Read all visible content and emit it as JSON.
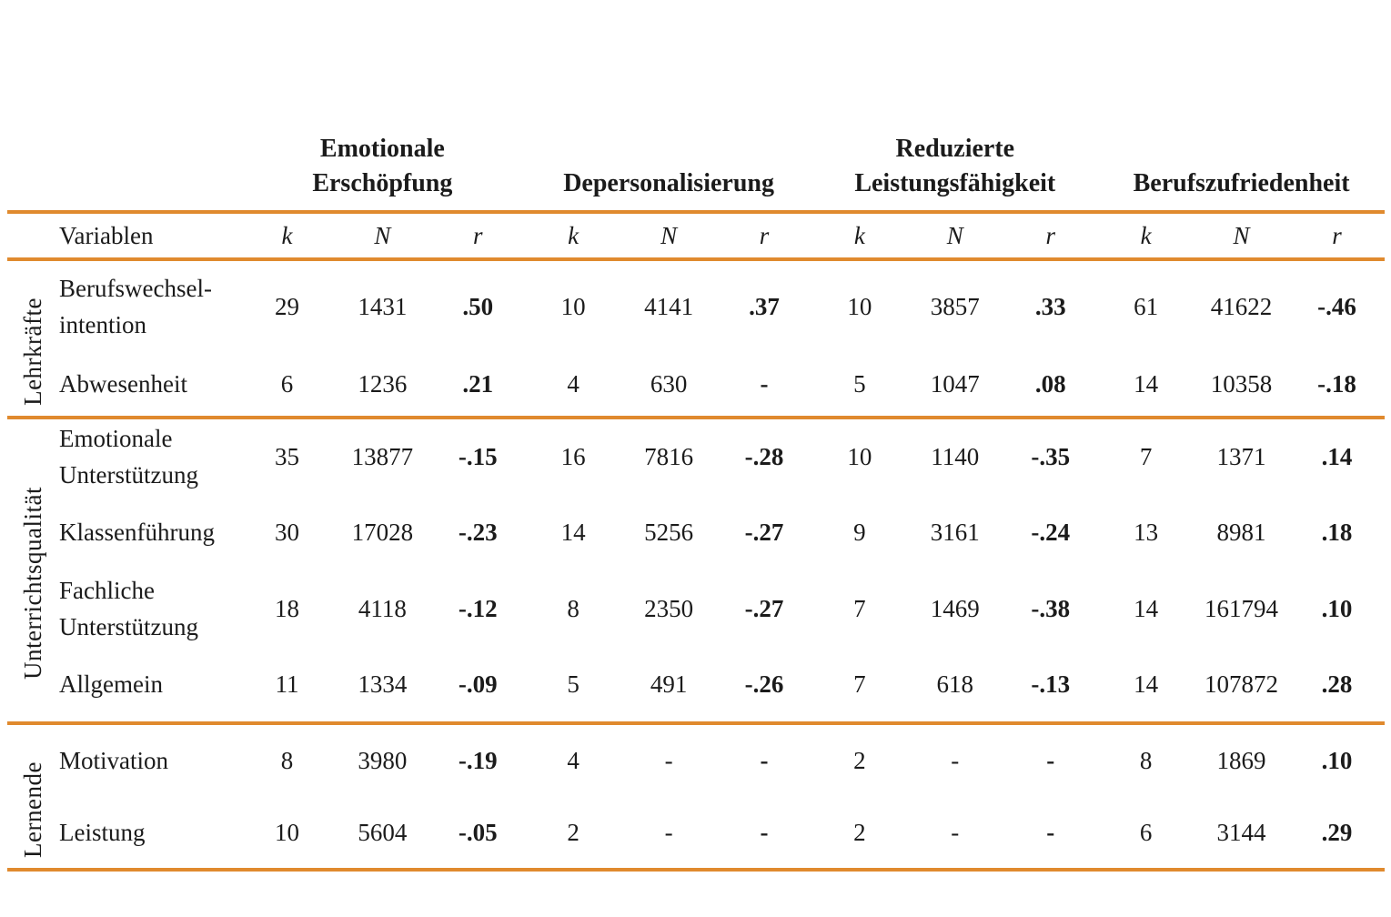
{
  "styles": {
    "accent_rule_color": "#E08A2E",
    "text_color": "#1b1b1b"
  },
  "table": {
    "variables_header": "Variablen",
    "stat_headers": [
      "k",
      "N",
      "r"
    ],
    "column_groups": [
      "Emotionale\nErschöpfung",
      "Depersonalisierung",
      "Reduzierte\nLeistungsfähigkeit",
      "Berufszufriedenheit"
    ],
    "row_groups": [
      {
        "label": "Lehrkräfte",
        "rows": [
          {
            "label": "Berufswechsel-\nintention",
            "values": [
              "29",
              "1431",
              ".50",
              "10",
              "4141",
              ".37",
              "10",
              "3857",
              ".33",
              "61",
              "41622",
              "-.46"
            ]
          },
          {
            "label": "Abwesenheit",
            "values": [
              "6",
              "1236",
              ".21",
              "4",
              "630",
              "-",
              "5",
              "1047",
              ".08",
              "14",
              "10358",
              "-.18"
            ]
          }
        ]
      },
      {
        "label": "Unterrichtsqualität",
        "rows": [
          {
            "label": "Emotionale\nUnterstützung",
            "values": [
              "35",
              "13877",
              "-.15",
              "16",
              "7816",
              "-.28",
              "10",
              "1140",
              "-.35",
              "7",
              "1371",
              ".14"
            ]
          },
          {
            "label": "Klassenführung",
            "values": [
              "30",
              "17028",
              "-.23",
              "14",
              "5256",
              "-.27",
              "9",
              "3161",
              "-.24",
              "13",
              "8981",
              ".18"
            ]
          },
          {
            "label": "Fachliche\nUnterstützung",
            "values": [
              "18",
              "4118",
              "-.12",
              "8",
              "2350",
              "-.27",
              "7",
              "1469",
              "-.38",
              "14",
              "161794",
              ".10"
            ]
          },
          {
            "label": "Allgemein",
            "values": [
              "11",
              "1334",
              "-.09",
              "5",
              "491",
              "-.26",
              "7",
              "618",
              "-.13",
              "14",
              "107872",
              ".28"
            ]
          }
        ]
      },
      {
        "label": "Lernende",
        "rows": [
          {
            "label": "Motivation",
            "values": [
              "8",
              "3980",
              "-.19",
              "4",
              "-",
              "-",
              "2",
              "-",
              "-",
              "8",
              "1869",
              ".10"
            ]
          },
          {
            "label": "Leistung",
            "values": [
              "10",
              "5604",
              "-.05",
              "2",
              "-",
              "-",
              "2",
              "-",
              "-",
              "6",
              "3144",
              ".29"
            ]
          }
        ]
      }
    ]
  }
}
